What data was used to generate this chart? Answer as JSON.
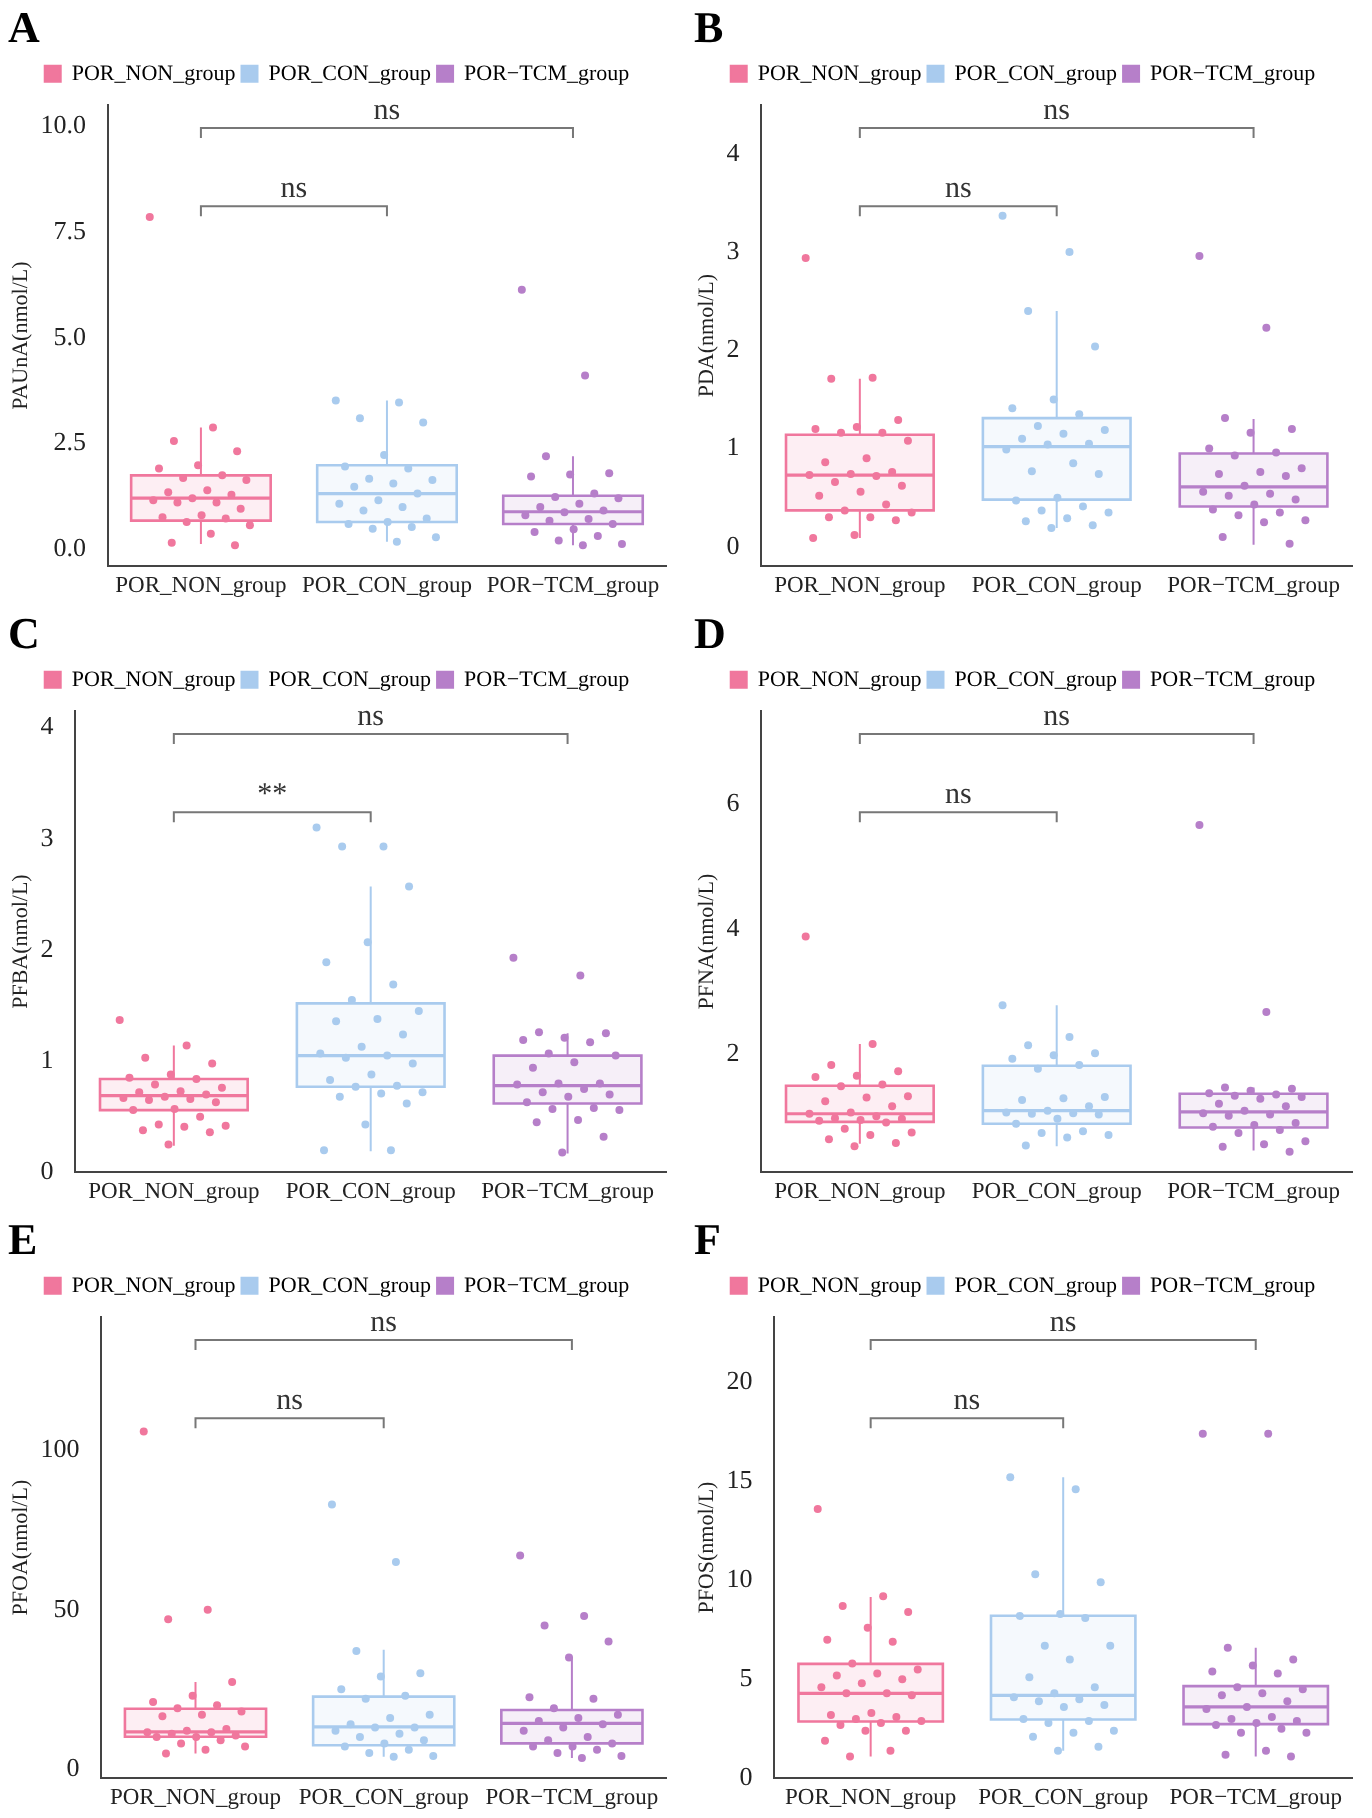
{
  "chart_data": [
    {
      "type": "box",
      "title": "A",
      "ylabel": "PAUnA(nmol/L)",
      "categories": [
        "POR_NON_group",
        "POR_CON_group",
        "POR−TCM_group"
      ],
      "colors": [
        "#f0779d",
        "#a9cbee",
        "#b67fc9"
      ],
      "legend": "top",
      "marker": "circle",
      "ylim": [
        -0.4,
        10.5
      ],
      "yticks": [
        {
          "value": 0,
          "label": "0.0"
        },
        {
          "value": 2.5,
          "label": "2.5"
        },
        {
          "value": 5,
          "label": "5.0"
        },
        {
          "value": 7.5,
          "label": "7.5"
        },
        {
          "value": 10,
          "label": "10.0"
        }
      ],
      "annotations": [
        "ns",
        "ns"
      ],
      "boxes": [
        {
          "low": 0.13,
          "q1": 0.68,
          "median": 1.21,
          "q3": 1.75,
          "high": 2.88
        },
        {
          "low": 0.18,
          "q1": 0.65,
          "median": 1.32,
          "q3": 1.99,
          "high": 3.52
        },
        {
          "low": 0.1,
          "q1": 0.6,
          "median": 0.89,
          "q3": 1.27,
          "high": 2.2
        }
      ],
      "series": [
        {
          "type": "scatter",
          "color": "#f0779d",
          "x": [
            "POR_NON_group",
            "POR_NON_group",
            "POR_NON_group",
            "POR_NON_group",
            "POR_NON_group",
            "POR_NON_group",
            "POR_NON_group",
            "POR_NON_group",
            "POR_NON_group",
            "POR_NON_group",
            "POR_NON_group",
            "POR_NON_group",
            "POR_NON_group",
            "POR_NON_group",
            "POR_NON_group",
            "POR_NON_group",
            "POR_NON_group",
            "POR_NON_group",
            "POR_NON_group",
            "POR_NON_group",
            "POR_NON_group",
            "POR_NON_group",
            "POR_NON_group",
            "POR_NON_group",
            "POR_NON_group"
          ],
          "name": "POR_NON_group",
          "values": [
            7.85,
            2.88,
            2.56,
            2.32,
            1.99,
            1.91,
            1.75,
            1.69,
            1.64,
            1.4,
            1.35,
            1.29,
            1.21,
            1.16,
            1.11,
            1.11,
            0.96,
            0.81,
            0.76,
            0.73,
            0.65,
            0.57,
            0.37,
            0.16,
            0.1
          ]
        },
        {
          "type": "scatter",
          "color": "#a9cbee",
          "x": [
            "POR_CON_group",
            "POR_CON_group",
            "POR_CON_group",
            "POR_CON_group",
            "POR_CON_group",
            "POR_CON_group",
            "POR_CON_group",
            "POR_CON_group",
            "POR_CON_group",
            "POR_CON_group",
            "POR_CON_group",
            "POR_CON_group",
            "POR_CON_group",
            "POR_CON_group",
            "POR_CON_group",
            "POR_CON_group",
            "POR_CON_group",
            "POR_CON_group",
            "POR_CON_group",
            "POR_CON_group",
            "POR_CON_group",
            "POR_CON_group",
            "POR_CON_group"
          ],
          "name": "POR_CON_group",
          "values": [
            3.52,
            3.47,
            3.1,
            3.0,
            2.23,
            1.96,
            1.91,
            1.67,
            1.64,
            1.56,
            1.48,
            1.32,
            1.16,
            1.08,
            1.0,
            0.92,
            0.73,
            0.65,
            0.6,
            0.53,
            0.49,
            0.29,
            0.18
          ]
        },
        {
          "type": "scatter",
          "color": "#b67fc9",
          "x": [
            "POR−TCM_group",
            "POR−TCM_group",
            "POR−TCM_group",
            "POR−TCM_group",
            "POR−TCM_group",
            "POR−TCM_group",
            "POR−TCM_group",
            "POR−TCM_group",
            "POR−TCM_group",
            "POR−TCM_group",
            "POR−TCM_group",
            "POR−TCM_group",
            "POR−TCM_group",
            "POR−TCM_group",
            "POR−TCM_group",
            "POR−TCM_group",
            "POR−TCM_group",
            "POR−TCM_group",
            "POR−TCM_group",
            "POR−TCM_group",
            "POR−TCM_group",
            "POR−TCM_group",
            "POR−TCM_group"
          ],
          "name": "POR−TCM_group",
          "values": [
            6.13,
            4.11,
            2.2,
            1.8,
            1.77,
            1.72,
            1.32,
            1.24,
            1.21,
            1.08,
            1.0,
            0.92,
            0.88,
            0.81,
            0.72,
            0.68,
            0.6,
            0.48,
            0.41,
            0.32,
            0.21,
            0.13,
            0.1
          ]
        }
      ]
    },
    {
      "type": "box",
      "title": "B",
      "ylabel": "PDA(nmol/L)",
      "categories": [
        "POR_NON_group",
        "POR_CON_group",
        "POR−TCM_group"
      ],
      "colors": [
        "#f0779d",
        "#a9cbee",
        "#b67fc9"
      ],
      "legend": "top",
      "marker": "circle",
      "ylim": [
        -0.2,
        4.5
      ],
      "yticks": [
        0,
        1,
        2,
        3,
        4
      ],
      "annotations": [
        "ns",
        "ns"
      ],
      "boxes": [
        {
          "low": 0.09,
          "q1": 0.37,
          "median": 0.73,
          "q3": 1.14,
          "high": 1.71
        },
        {
          "low": 0.19,
          "q1": 0.48,
          "median": 1.02,
          "q3": 1.31,
          "high": 2.4
        },
        {
          "low": 0.02,
          "q1": 0.41,
          "median": 0.61,
          "q3": 0.95,
          "high": 1.3
        }
      ],
      "series": [
        {
          "type": "scatter",
          "color": "#f0779d",
          "x": [
            "POR_NON_group",
            "POR_NON_group",
            "POR_NON_group",
            "POR_NON_group",
            "POR_NON_group",
            "POR_NON_group",
            "POR_NON_group",
            "POR_NON_group",
            "POR_NON_group",
            "POR_NON_group",
            "POR_NON_group",
            "POR_NON_group",
            "POR_NON_group",
            "POR_NON_group",
            "POR_NON_group",
            "POR_NON_group",
            "POR_NON_group",
            "POR_NON_group",
            "POR_NON_group",
            "POR_NON_group",
            "POR_NON_group",
            "POR_NON_group",
            "POR_NON_group",
            "POR_NON_group",
            "POR_NON_group",
            "POR_NON_group",
            "POR_NON_group"
          ],
          "name": "POR_NON_group",
          "values": [
            2.94,
            1.72,
            1.71,
            1.29,
            1.22,
            1.2,
            1.16,
            1.16,
            1.08,
            0.9,
            0.86,
            0.76,
            0.74,
            0.73,
            0.72,
            0.66,
            0.62,
            0.56,
            0.52,
            0.43,
            0.37,
            0.35,
            0.3,
            0.3,
            0.27,
            0.12,
            0.09
          ]
        },
        {
          "type": "scatter",
          "color": "#a9cbee",
          "x": [
            "POR_CON_group",
            "POR_CON_group",
            "POR_CON_group",
            "POR_CON_group",
            "POR_CON_group",
            "POR_CON_group",
            "POR_CON_group",
            "POR_CON_group",
            "POR_CON_group",
            "POR_CON_group",
            "POR_CON_group",
            "POR_CON_group",
            "POR_CON_group",
            "POR_CON_group",
            "POR_CON_group",
            "POR_CON_group",
            "POR_CON_group",
            "POR_CON_group",
            "POR_CON_group",
            "POR_CON_group",
            "POR_CON_group",
            "POR_CON_group",
            "POR_CON_group",
            "POR_CON_group",
            "POR_CON_group",
            "POR_CON_group"
          ],
          "name": "POR_CON_group",
          "values": [
            3.37,
            3.0,
            2.4,
            2.04,
            1.5,
            1.41,
            1.35,
            1.23,
            1.19,
            1.15,
            1.1,
            1.05,
            1.04,
            0.99,
            0.85,
            0.77,
            0.74,
            0.5,
            0.47,
            0.41,
            0.37,
            0.35,
            0.29,
            0.26,
            0.22,
            0.19
          ]
        },
        {
          "type": "scatter",
          "color": "#b67fc9",
          "x": [
            "POR−TCM_group",
            "POR−TCM_group",
            "POR−TCM_group",
            "POR−TCM_group",
            "POR−TCM_group",
            "POR−TCM_group",
            "POR−TCM_group",
            "POR−TCM_group",
            "POR−TCM_group",
            "POR−TCM_group",
            "POR−TCM_group",
            "POR−TCM_group",
            "POR−TCM_group",
            "POR−TCM_group",
            "POR−TCM_group",
            "POR−TCM_group",
            "POR−TCM_group",
            "POR−TCM_group",
            "POR−TCM_group",
            "POR−TCM_group",
            "POR−TCM_group",
            "POR−TCM_group",
            "POR−TCM_group",
            "POR−TCM_group",
            "POR−TCM_group"
          ],
          "name": "POR−TCM_group",
          "values": [
            2.96,
            2.23,
            1.31,
            1.2,
            1.16,
            1.0,
            0.96,
            0.93,
            0.8,
            0.76,
            0.74,
            0.72,
            0.62,
            0.56,
            0.54,
            0.52,
            0.48,
            0.43,
            0.38,
            0.35,
            0.32,
            0.27,
            0.25,
            0.1,
            0.03
          ]
        }
      ]
    },
    {
      "type": "box",
      "title": "C",
      "ylabel": "PFBA(nmol/L)",
      "categories": [
        "POR_NON_group",
        "POR_CON_group",
        "POR−TCM_group"
      ],
      "colors": [
        "#f0779d",
        "#a9cbee",
        "#b67fc9"
      ],
      "legend": "top",
      "marker": "circle",
      "ylim": [
        0,
        4.15
      ],
      "yticks": [
        0,
        1,
        2,
        3,
        4
      ],
      "annotations": [
        "ns",
        "**"
      ],
      "boxes": [
        {
          "low": 0.24,
          "q1": 0.56,
          "median": 0.69,
          "q3": 0.84,
          "high": 1.14
        },
        {
          "low": 0.19,
          "q1": 0.77,
          "median": 1.05,
          "q3": 1.52,
          "high": 2.57
        },
        {
          "low": 0.17,
          "q1": 0.62,
          "median": 0.78,
          "q3": 1.05,
          "high": 1.25
        }
      ],
      "series": [
        {
          "type": "scatter",
          "color": "#f0779d",
          "x": [
            "POR_NON_group",
            "POR_NON_group",
            "POR_NON_group",
            "POR_NON_group",
            "POR_NON_group",
            "POR_NON_group",
            "POR_NON_group",
            "POR_NON_group",
            "POR_NON_group",
            "POR_NON_group",
            "POR_NON_group",
            "POR_NON_group",
            "POR_NON_group",
            "POR_NON_group",
            "POR_NON_group",
            "POR_NON_group",
            "POR_NON_group",
            "POR_NON_group",
            "POR_NON_group",
            "POR_NON_group",
            "POR_NON_group",
            "POR_NON_group",
            "POR_NON_group",
            "POR_NON_group",
            "POR_NON_group",
            "POR_NON_group"
          ],
          "name": "POR_NON_group",
          "values": [
            1.37,
            1.14,
            1.03,
            0.98,
            0.88,
            0.85,
            0.84,
            0.79,
            0.76,
            0.73,
            0.72,
            0.7,
            0.68,
            0.67,
            0.66,
            0.65,
            0.63,
            0.57,
            0.56,
            0.5,
            0.43,
            0.42,
            0.41,
            0.38,
            0.36,
            0.25
          ]
        },
        {
          "type": "scatter",
          "color": "#a9cbee",
          "x": [
            "POR_CON_group",
            "POR_CON_group",
            "POR_CON_group",
            "POR_CON_group",
            "POR_CON_group",
            "POR_CON_group",
            "POR_CON_group",
            "POR_CON_group",
            "POR_CON_group",
            "POR_CON_group",
            "POR_CON_group",
            "POR_CON_group",
            "POR_CON_group",
            "POR_CON_group",
            "POR_CON_group",
            "POR_CON_group",
            "POR_CON_group",
            "POR_CON_group",
            "POR_CON_group",
            "POR_CON_group",
            "POR_CON_group",
            "POR_CON_group",
            "POR_CON_group",
            "POR_CON_group",
            "POR_CON_group",
            "POR_CON_group",
            "POR_CON_group",
            "POR_CON_group"
          ],
          "name": "POR_CON_group",
          "values": [
            3.1,
            2.93,
            2.93,
            2.57,
            2.07,
            1.89,
            1.69,
            1.55,
            1.45,
            1.38,
            1.36,
            1.24,
            1.13,
            1.07,
            1.05,
            1.03,
            0.98,
            0.88,
            0.83,
            0.78,
            0.77,
            0.72,
            0.71,
            0.68,
            0.62,
            0.43,
            0.2,
            0.2
          ]
        },
        {
          "type": "scatter",
          "color": "#b67fc9",
          "x": [
            "POR−TCM_group",
            "POR−TCM_group",
            "POR−TCM_group",
            "POR−TCM_group",
            "POR−TCM_group",
            "POR−TCM_group",
            "POR−TCM_group",
            "POR−TCM_group",
            "POR−TCM_group",
            "POR−TCM_group",
            "POR−TCM_group",
            "POR−TCM_group",
            "POR−TCM_group",
            "POR−TCM_group",
            "POR−TCM_group",
            "POR−TCM_group",
            "POR−TCM_group",
            "POR−TCM_group",
            "POR−TCM_group",
            "POR−TCM_group",
            "POR−TCM_group",
            "POR−TCM_group",
            "POR−TCM_group",
            "POR−TCM_group",
            "POR−TCM_group",
            "POR−TCM_group"
          ],
          "name": "POR−TCM_group",
          "values": [
            1.93,
            1.77,
            1.26,
            1.25,
            1.21,
            1.19,
            1.17,
            1.07,
            1.05,
            0.99,
            0.94,
            0.8,
            0.8,
            0.79,
            0.75,
            0.72,
            0.7,
            0.68,
            0.63,
            0.58,
            0.57,
            0.56,
            0.47,
            0.45,
            0.32,
            0.18
          ]
        }
      ]
    },
    {
      "type": "box",
      "title": "D",
      "ylabel": "PFNA(nmol/L)",
      "categories": [
        "POR_NON_group",
        "POR_CON_group",
        "POR−TCM_group"
      ],
      "colors": [
        "#f0779d",
        "#a9cbee",
        "#b67fc9"
      ],
      "legend": "top",
      "marker": "circle",
      "ylim": [
        0.1,
        7.5
      ],
      "yticks": [
        2,
        4,
        6
      ],
      "annotations": [
        "ns",
        "ns"
      ],
      "boxes": [
        {
          "low": 0.56,
          "q1": 0.91,
          "median": 1.04,
          "q3": 1.49,
          "high": 2.16
        },
        {
          "low": 0.52,
          "q1": 0.88,
          "median": 1.09,
          "q3": 1.81,
          "high": 2.78
        },
        {
          "low": 0.45,
          "q1": 0.82,
          "median": 1.07,
          "q3": 1.36,
          "high": 1.46
        }
      ],
      "series": [
        {
          "type": "scatter",
          "color": "#f0779d",
          "x": [
            "POR_NON_group",
            "POR_NON_group",
            "POR_NON_group",
            "POR_NON_group",
            "POR_NON_group",
            "POR_NON_group",
            "POR_NON_group",
            "POR_NON_group",
            "POR_NON_group",
            "POR_NON_group",
            "POR_NON_group",
            "POR_NON_group",
            "POR_NON_group",
            "POR_NON_group",
            "POR_NON_group",
            "POR_NON_group",
            "POR_NON_group",
            "POR_NON_group",
            "POR_NON_group",
            "POR_NON_group",
            "POR_NON_group",
            "POR_NON_group",
            "POR_NON_group",
            "POR_NON_group",
            "POR_NON_group",
            "POR_NON_group"
          ],
          "name": "POR_NON_group",
          "values": [
            3.88,
            2.16,
            1.82,
            1.72,
            1.65,
            1.63,
            1.51,
            1.48,
            1.32,
            1.3,
            1.24,
            1.16,
            1.06,
            1.04,
            1.0,
            0.97,
            0.96,
            0.94,
            0.93,
            0.9,
            0.8,
            0.74,
            0.7,
            0.63,
            0.57,
            0.52
          ]
        },
        {
          "type": "scatter",
          "color": "#a9cbee",
          "x": [
            "POR_CON_group",
            "POR_CON_group",
            "POR_CON_group",
            "POR_CON_group",
            "POR_CON_group",
            "POR_CON_group",
            "POR_CON_group",
            "POR_CON_group",
            "POR_CON_group",
            "POR_CON_group",
            "POR_CON_group",
            "POR_CON_group",
            "POR_CON_group",
            "POR_CON_group",
            "POR_CON_group",
            "POR_CON_group",
            "POR_CON_group",
            "POR_CON_group",
            "POR_CON_group",
            "POR_CON_group",
            "POR_CON_group",
            "POR_CON_group",
            "POR_CON_group",
            "POR_CON_group"
          ],
          "name": "POR_CON_group",
          "values": [
            2.78,
            2.27,
            2.14,
            2.01,
            1.98,
            1.92,
            1.82,
            1.76,
            1.31,
            1.29,
            1.26,
            1.16,
            1.09,
            1.06,
            1.05,
            1.04,
            1.03,
            0.96,
            0.88,
            0.76,
            0.73,
            0.7,
            0.66,
            0.53
          ]
        },
        {
          "type": "scatter",
          "color": "#b67fc9",
          "x": [
            "POR−TCM_group",
            "POR−TCM_group",
            "POR−TCM_group",
            "POR−TCM_group",
            "POR−TCM_group",
            "POR−TCM_group",
            "POR−TCM_group",
            "POR−TCM_group",
            "POR−TCM_group",
            "POR−TCM_group",
            "POR−TCM_group",
            "POR−TCM_group",
            "POR−TCM_group",
            "POR−TCM_group",
            "POR−TCM_group",
            "POR−TCM_group",
            "POR−TCM_group",
            "POR−TCM_group",
            "POR−TCM_group",
            "POR−TCM_group",
            "POR−TCM_group",
            "POR−TCM_group",
            "POR−TCM_group",
            "POR−TCM_group",
            "POR−TCM_group"
          ],
          "name": "POR−TCM_group",
          "values": [
            5.67,
            2.67,
            1.46,
            1.44,
            1.41,
            1.37,
            1.35,
            1.33,
            1.31,
            1.28,
            1.2,
            1.16,
            1.09,
            1.05,
            1.03,
            1.01,
            0.89,
            0.86,
            0.83,
            0.78,
            0.73,
            0.6,
            0.55,
            0.51,
            0.43
          ]
        }
      ]
    },
    {
      "type": "box",
      "title": "E",
      "ylabel": "PFOA(nmol/L)",
      "categories": [
        "POR_NON_group",
        "POR_CON_group",
        "POR−TCM_group"
      ],
      "colors": [
        "#f0779d",
        "#a9cbee",
        "#b67fc9"
      ],
      "legend": "top",
      "marker": "circle",
      "ylim": [
        -3,
        142
      ],
      "yticks": [
        0,
        50,
        100
      ],
      "annotations": [
        "ns",
        "ns"
      ],
      "boxes": [
        {
          "low": 4.8,
          "q1": 10.1,
          "median": 11.6,
          "q3": 18.9,
          "high": 27.3
        },
        {
          "low": 3.8,
          "q1": 7.4,
          "median": 13.2,
          "q3": 22.7,
          "high": 37.4
        },
        {
          "low": 3.4,
          "q1": 8,
          "median": 14.3,
          "q3": 18.5,
          "high": 34.9
        }
      ],
      "series": [
        {
          "type": "scatter",
          "color": "#f0779d",
          "x": [
            "POR_NON_group",
            "POR_NON_group",
            "POR_NON_group",
            "POR_NON_group",
            "POR_NON_group",
            "POR_NON_group",
            "POR_NON_group",
            "POR_NON_group",
            "POR_NON_group",
            "POR_NON_group",
            "POR_NON_group",
            "POR_NON_group",
            "POR_NON_group",
            "POR_NON_group",
            "POR_NON_group",
            "POR_NON_group",
            "POR_NON_group",
            "POR_NON_group",
            "POR_NON_group",
            "POR_NON_group",
            "POR_NON_group",
            "POR_NON_group",
            "POR_NON_group",
            "POR_NON_group"
          ],
          "name": "POR_NON_group",
          "values": [
            106,
            50,
            47,
            27.3,
            23,
            21,
            20,
            19,
            18,
            17,
            16.5,
            12.5,
            12,
            11.5,
            11.5,
            11,
            10.5,
            10,
            10,
            9,
            8,
            7,
            6,
            4.8
          ]
        },
        {
          "type": "scatter",
          "color": "#a9cbee",
          "x": [
            "POR_CON_group",
            "POR_CON_group",
            "POR_CON_group",
            "POR_CON_group",
            "POR_CON_group",
            "POR_CON_group",
            "POR_CON_group",
            "POR_CON_group",
            "POR_CON_group",
            "POR_CON_group",
            "POR_CON_group",
            "POR_CON_group",
            "POR_CON_group",
            "POR_CON_group",
            "POR_CON_group",
            "POR_CON_group",
            "POR_CON_group",
            "POR_CON_group",
            "POR_CON_group",
            "POR_CON_group",
            "POR_CON_group",
            "POR_CON_group",
            "POR_CON_group"
          ],
          "name": "POR_CON_group",
          "values": [
            83,
            65,
            37,
            30,
            29,
            25,
            23,
            22,
            17,
            16,
            14,
            13,
            13,
            12,
            11,
            10,
            9,
            8,
            7,
            6,
            5,
            4,
            3.8
          ]
        },
        {
          "type": "scatter",
          "color": "#b67fc9",
          "x": [
            "POR−TCM_group",
            "POR−TCM_group",
            "POR−TCM_group",
            "POR−TCM_group",
            "POR−TCM_group",
            "POR−TCM_group",
            "POR−TCM_group",
            "POR−TCM_group",
            "POR−TCM_group",
            "POR−TCM_group",
            "POR−TCM_group",
            "POR−TCM_group",
            "POR−TCM_group",
            "POR−TCM_group",
            "POR−TCM_group",
            "POR−TCM_group",
            "POR−TCM_group",
            "POR−TCM_group",
            "POR−TCM_group",
            "POR−TCM_group",
            "POR−TCM_group",
            "POR−TCM_group",
            "POR−TCM_group"
          ],
          "name": "POR−TCM_group",
          "values": [
            67,
            48,
            45,
            40,
            35,
            22.5,
            22,
            19,
            17,
            16,
            15,
            14,
            13,
            12,
            10,
            9,
            8,
            7,
            7,
            6,
            5,
            4,
            3.4
          ]
        }
      ]
    },
    {
      "type": "box",
      "title": "F",
      "ylabel": "PFOS(nmol/L)",
      "categories": [
        "POR_NON_group",
        "POR_CON_group",
        "POR−TCM_group"
      ],
      "colors": [
        "#f0779d",
        "#a9cbee",
        "#b67fc9"
      ],
      "legend": "top",
      "marker": "circle",
      "ylim": [
        0,
        23.3
      ],
      "yticks": [
        0,
        5,
        10,
        15,
        20
      ],
      "annotations": [
        "ns",
        "ns"
      ],
      "boxes": [
        {
          "low": 1.1,
          "q1": 2.87,
          "median": 4.29,
          "q3": 5.78,
          "high": 9.16
        },
        {
          "low": 1.4,
          "q1": 2.97,
          "median": 4.19,
          "q3": 8.21,
          "high": 15.2
        },
        {
          "low": 1.1,
          "q1": 2.74,
          "median": 3.61,
          "q3": 4.66,
          "high": 6.6
        }
      ],
      "series": [
        {
          "type": "scatter",
          "color": "#f0779d",
          "x": [
            "POR_NON_group",
            "POR_NON_group",
            "POR_NON_group",
            "POR_NON_group",
            "POR_NON_group",
            "POR_NON_group",
            "POR_NON_group",
            "POR_NON_group",
            "POR_NON_group",
            "POR_NON_group",
            "POR_NON_group",
            "POR_NON_group",
            "POR_NON_group",
            "POR_NON_group",
            "POR_NON_group",
            "POR_NON_group",
            "POR_NON_group",
            "POR_NON_group",
            "POR_NON_group",
            "POR_NON_group",
            "POR_NON_group",
            "POR_NON_group",
            "POR_NON_group",
            "POR_NON_group",
            "POR_NON_group",
            "POR_NON_group",
            "POR_NON_group",
            "POR_NON_group",
            "POR_NON_group"
          ],
          "name": "POR_NON_group",
          "values": [
            13.6,
            9.2,
            8.7,
            8.4,
            7.6,
            7.0,
            6.9,
            5.8,
            5.5,
            5.3,
            5.2,
            5.0,
            4.8,
            4.6,
            4.3,
            4.3,
            4.2,
            3.3,
            3.2,
            3.1,
            3.0,
            2.9,
            2.8,
            2.7,
            2.4,
            2.4,
            1.9,
            1.4,
            1.1
          ]
        },
        {
          "type": "scatter",
          "color": "#a9cbee",
          "x": [
            "POR_CON_group",
            "POR_CON_group",
            "POR_CON_group",
            "POR_CON_group",
            "POR_CON_group",
            "POR_CON_group",
            "POR_CON_group",
            "POR_CON_group",
            "POR_CON_group",
            "POR_CON_group",
            "POR_CON_group",
            "POR_CON_group",
            "POR_CON_group",
            "POR_CON_group",
            "POR_CON_group",
            "POR_CON_group",
            "POR_CON_group",
            "POR_CON_group",
            "POR_CON_group",
            "POR_CON_group",
            "POR_CON_group",
            "POR_CON_group",
            "POR_CON_group",
            "POR_CON_group",
            "POR_CON_group",
            "POR_CON_group"
          ],
          "name": "POR_CON_group",
          "values": [
            15.2,
            14.6,
            10.3,
            9.9,
            8.3,
            8.2,
            8.1,
            6.7,
            6.7,
            6.0,
            5.1,
            4.6,
            4.3,
            4.1,
            4.0,
            3.9,
            3.7,
            3.6,
            3.0,
            2.9,
            2.8,
            2.4,
            2.3,
            2.1,
            1.6,
            1.4
          ]
        },
        {
          "type": "scatter",
          "color": "#b67fc9",
          "x": [
            "POR−TCM_group",
            "POR−TCM_group",
            "POR−TCM_group",
            "POR−TCM_group",
            "POR−TCM_group",
            "POR−TCM_group",
            "POR−TCM_group",
            "POR−TCM_group",
            "POR−TCM_group",
            "POR−TCM_group",
            "POR−TCM_group",
            "POR−TCM_group",
            "POR−TCM_group",
            "POR−TCM_group",
            "POR−TCM_group",
            "POR−TCM_group",
            "POR−TCM_group",
            "POR−TCM_group",
            "POR−TCM_group",
            "POR−TCM_group",
            "POR−TCM_group",
            "POR−TCM_group",
            "POR−TCM_group",
            "POR−TCM_group",
            "POR−TCM_group"
          ],
          "name": "POR−TCM_group",
          "values": [
            17.4,
            17.4,
            6.6,
            6.0,
            5.7,
            5.4,
            5.3,
            4.6,
            4.5,
            4.3,
            4.2,
            3.9,
            3.6,
            3.5,
            3.1,
            3.0,
            2.9,
            2.8,
            2.7,
            2.5,
            2.3,
            2.3,
            1.4,
            1.2,
            1.1
          ]
        }
      ]
    }
  ]
}
